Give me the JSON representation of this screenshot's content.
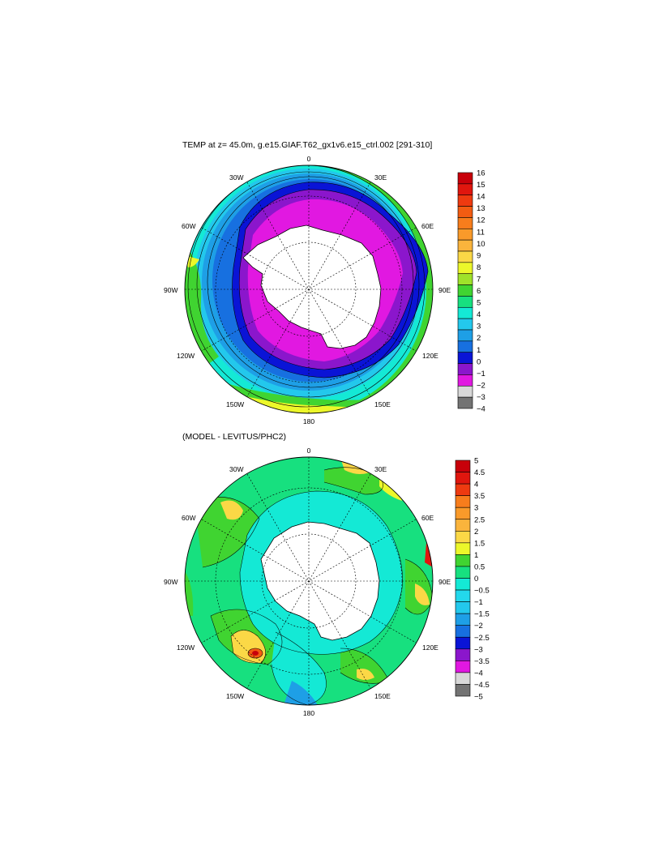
{
  "panels": [
    {
      "title": "TEMP at z=  45.0m, g.e15.GIAF.T62_gx1v6.e15_ctrl.002 [291-310]",
      "lon_labels": {
        "top": "0",
        "bottom": "180",
        "left": "90W",
        "right": "90E",
        "ul30": "30W",
        "ul60": "60W",
        "ur30": "30E",
        "ur60": "60E",
        "ll120": "120W",
        "ll150": "150W",
        "lr120": "120E",
        "lr150": "150E"
      },
      "colorbar": {
        "labels": [
          "16",
          "15",
          "14",
          "13",
          "12",
          "11",
          "10",
          "9",
          "8",
          "7",
          "6",
          "5",
          "4",
          "3",
          "2",
          "1",
          "0",
          "−1",
          "−2",
          "−3",
          "−4"
        ],
        "colors": [
          "#c8000a",
          "#e0160e",
          "#ee3a10",
          "#f25c12",
          "#f77d1c",
          "#f99a2a",
          "#fab43c",
          "#fbd846",
          "#ecf72a",
          "#9fe22a",
          "#40d431",
          "#17e07f",
          "#14e9d5",
          "#23c8ec",
          "#1e9fe6",
          "#1770e0",
          "#0a14d6",
          "#8b16cc",
          "#e118e1",
          "#d8d8d8",
          "#737373"
        ]
      }
    },
    {
      "title": "(MODEL - LEVITUS/PHC2)",
      "lon_labels": {
        "top": "0",
        "bottom": "180",
        "left": "90W",
        "right": "90E",
        "ul30": "30W",
        "ul60": "60W",
        "ur30": "30E",
        "ur60": "60E",
        "ll120": "120W",
        "ll150": "150W",
        "lr120": "120E",
        "lr150": "150E"
      },
      "colorbar": {
        "labels": [
          "5",
          "4.5",
          "4",
          "3.5",
          "3",
          "2.5",
          "2",
          "1.5",
          "1",
          "0.5",
          "0",
          "−0.5",
          "−1",
          "−1.5",
          "−2",
          "−2.5",
          "−3",
          "−3.5",
          "−4",
          "−4.5",
          "−5"
        ],
        "colors": [
          "#c8000a",
          "#e0160e",
          "#ee3a10",
          "#f77d1c",
          "#f99a2a",
          "#fab43c",
          "#fbd846",
          "#ecf72a",
          "#40d431",
          "#17e07f",
          "#14e9d5",
          "#23d8ec",
          "#23c8ec",
          "#1e9fe6",
          "#1770e0",
          "#0a14d6",
          "#8b16cc",
          "#e118e1",
          "#d8d8d8",
          "#737373"
        ]
      }
    }
  ]
}
